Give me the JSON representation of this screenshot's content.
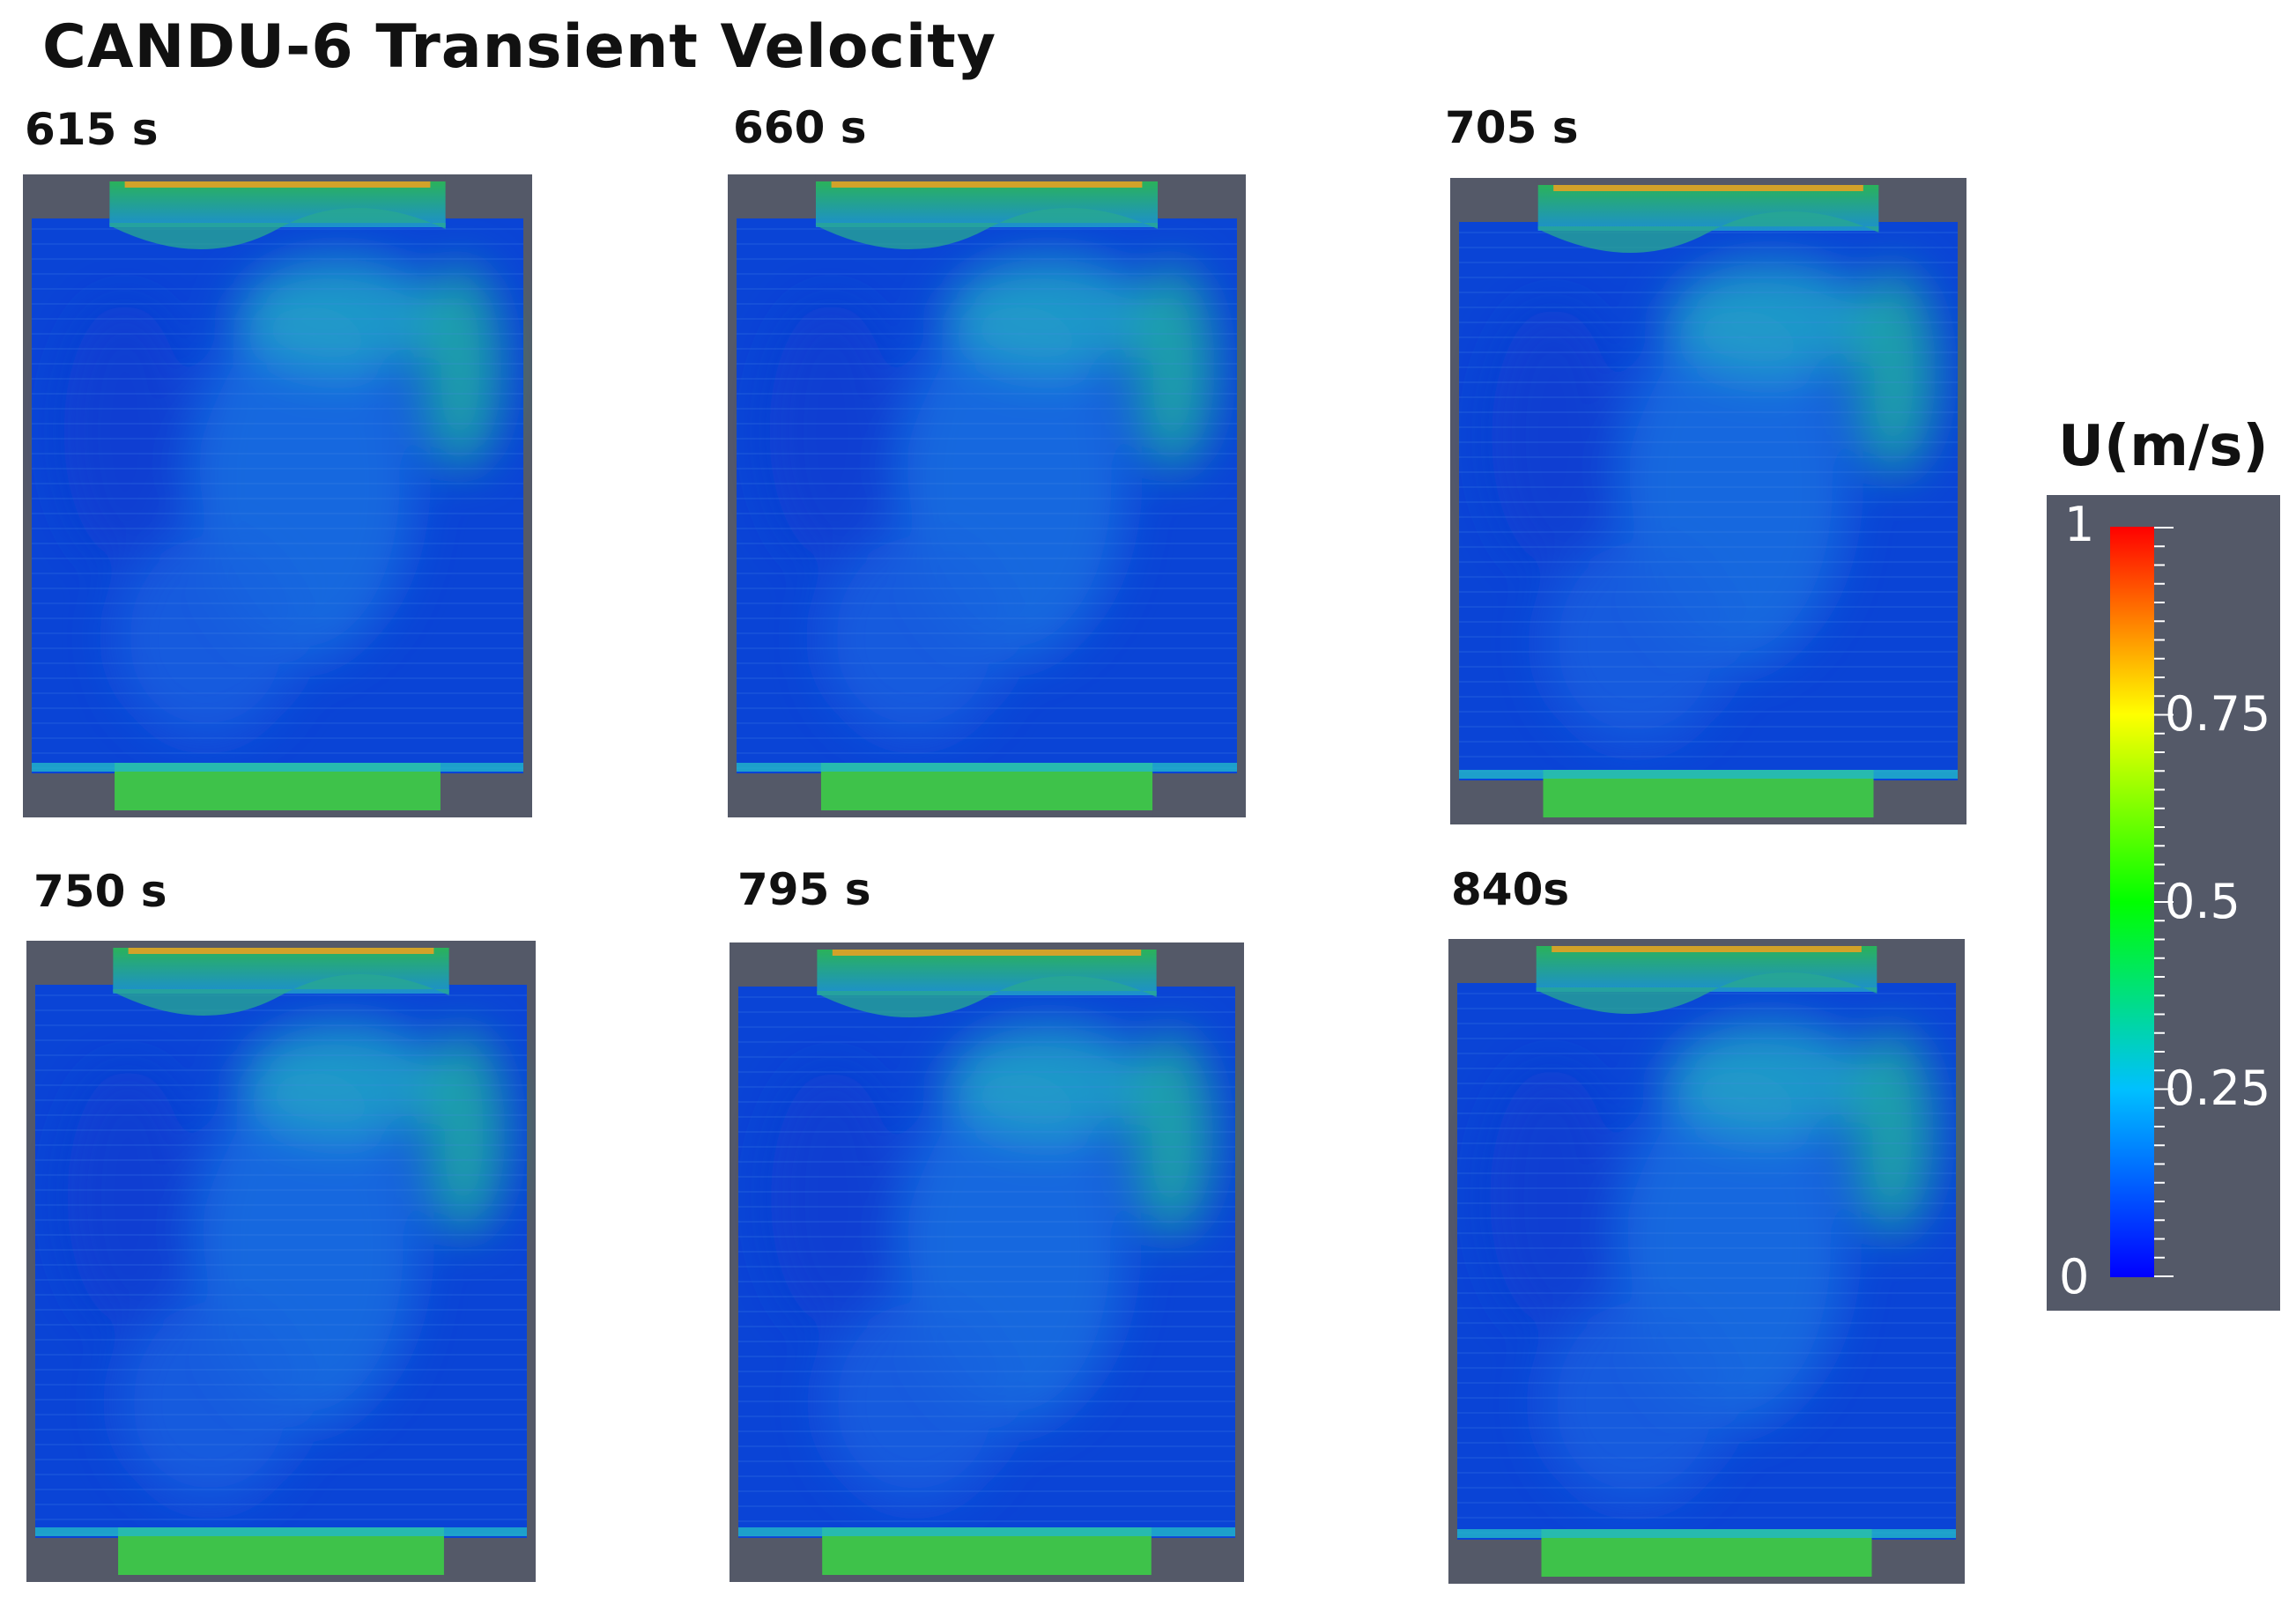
{
  "title": "CANDU-6 Transient Velocity",
  "panels": [
    {
      "label": "615 s"
    },
    {
      "label": "660 s"
    },
    {
      "label": "705 s"
    },
    {
      "label": "750 s"
    },
    {
      "label": "795 s"
    },
    {
      "label": "840s"
    }
  ],
  "colorbar": {
    "title": "U(m/s)",
    "min_label": "0",
    "max_label": "1",
    "tick_labels": [
      "0.75",
      "0.5",
      "0.25"
    ],
    "colormap": [
      "#0000ff",
      "#00c0ff",
      "#00ff00",
      "#ffff00",
      "#ff0000"
    ],
    "frame_color": "#545968"
  }
}
